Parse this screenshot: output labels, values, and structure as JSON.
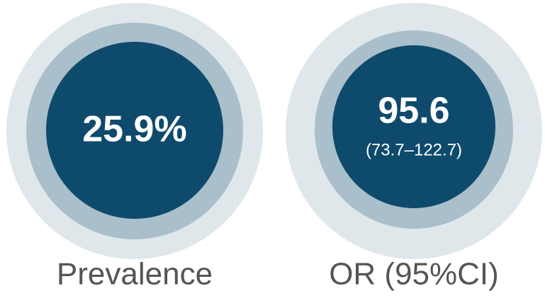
{
  "items": [
    {
      "value": "25.9%",
      "label": "Prevalence"
    },
    {
      "value": "95.6",
      "interval": "(73.7–122.7)",
      "label": "OR (95%CI)"
    }
  ]
}
